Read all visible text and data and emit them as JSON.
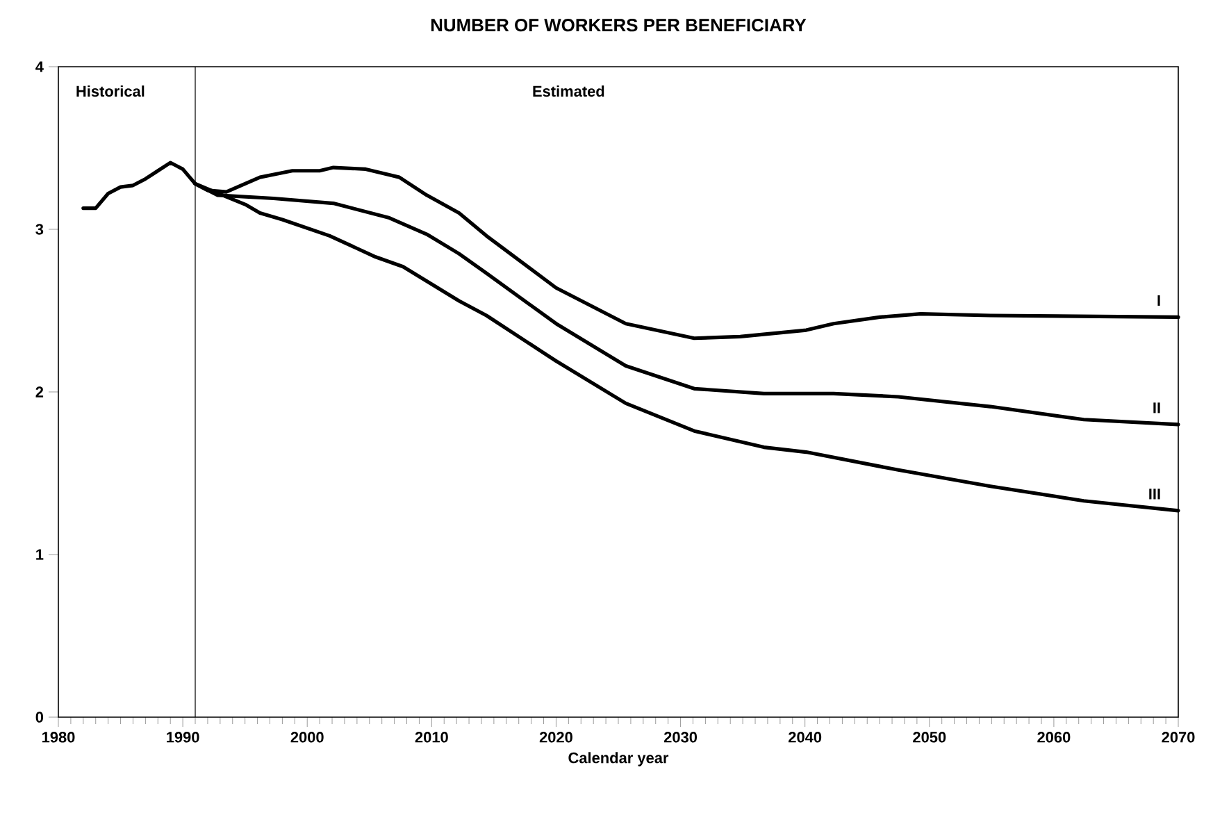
{
  "chart_data": {
    "type": "line",
    "title": "NUMBER OF  WORKERS PER BENEFICIARY",
    "xlabel": "Calendar year",
    "xlim": [
      1980,
      2070
    ],
    "ylim": [
      0,
      4
    ],
    "xticks": [
      1980,
      1990,
      2000,
      2010,
      2020,
      2030,
      2040,
      2050,
      2060,
      2070
    ],
    "yticks": [
      0,
      1,
      2,
      3,
      4
    ],
    "annotations": [
      "Historical",
      "Estimated"
    ],
    "ref_lines": [
      {
        "axis": "x",
        "value": 1991,
        "color": "#000000"
      }
    ],
    "line_style": "solid",
    "marker": "none",
    "grid": false,
    "series": [
      {
        "name": "I",
        "color": "#000000",
        "x": [
          1982,
          1983,
          1984,
          1985,
          1986,
          1987,
          1988,
          1989,
          1990,
          1991,
          1992,
          1993.5,
          1996.2,
          1998.8,
          2001,
          2002.1,
          2004.7,
          2007.4,
          2009.6,
          2012.2,
          2014.4,
          2020,
          2025.6,
          2031.1,
          2034.8,
          2040.1,
          2042.3,
          2046,
          2049.3,
          2054.9,
          2070
        ],
        "values": [
          3.13,
          3.13,
          3.22,
          3.26,
          3.27,
          3.31,
          3.36,
          3.41,
          3.37,
          3.28,
          3.24,
          3.23,
          3.32,
          3.36,
          3.36,
          3.38,
          3.37,
          3.32,
          3.21,
          3.1,
          2.96,
          2.64,
          2.42,
          2.33,
          2.34,
          2.38,
          2.42,
          2.46,
          2.48,
          2.47,
          2.46
        ]
      },
      {
        "name": "II",
        "color": "#000000",
        "x": [
          1991,
          1992.8,
          1997.3,
          2002.1,
          2006.6,
          2009.6,
          2012.2,
          2014.4,
          2020,
          2025.6,
          2031.1,
          2036.7,
          2042.3,
          2047.5,
          2054.9,
          2062.4,
          2070
        ],
        "values": [
          3.28,
          3.21,
          3.19,
          3.16,
          3.07,
          2.97,
          2.85,
          2.73,
          2.42,
          2.16,
          2.02,
          1.99,
          1.99,
          1.97,
          1.91,
          1.83,
          1.8
        ]
      },
      {
        "name": "III",
        "color": "#000000",
        "x": [
          1991,
          1993.5,
          1995.1,
          1996.2,
          1998,
          2001.8,
          2005.5,
          2007.7,
          2012.2,
          2014.4,
          2020,
          2025.6,
          2031.1,
          2036.7,
          2040.1,
          2047.5,
          2054.9,
          2062.4,
          2070
        ],
        "values": [
          3.28,
          3.2,
          3.15,
          3.1,
          3.06,
          2.96,
          2.83,
          2.77,
          2.56,
          2.47,
          2.19,
          1.93,
          1.76,
          1.66,
          1.63,
          1.52,
          1.42,
          1.33,
          1.27
        ]
      }
    ]
  }
}
